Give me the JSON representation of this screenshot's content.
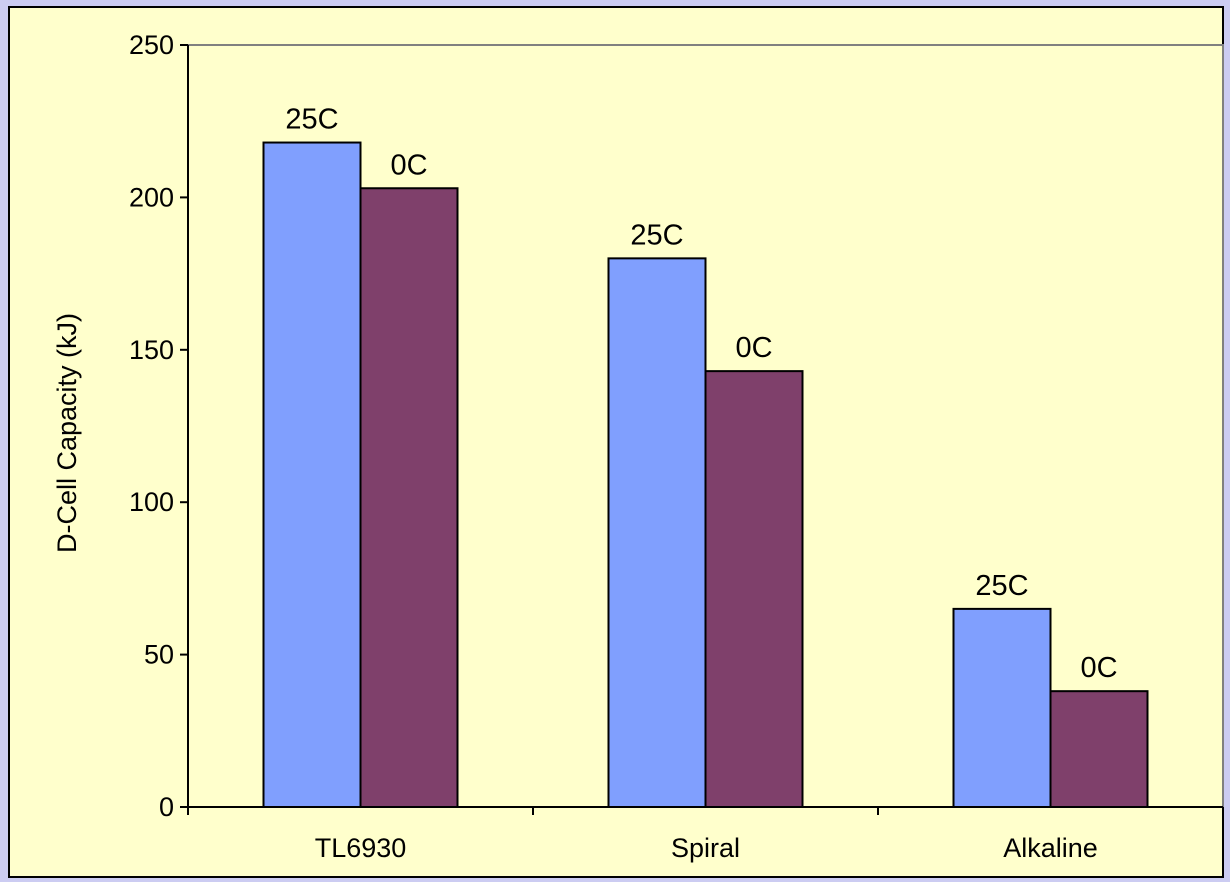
{
  "chart_data": {
    "type": "bar",
    "title": "",
    "xlabel": "",
    "ylabel": "D-Cell Capacity (kJ)",
    "categories": [
      "TL6930",
      "Spiral",
      "Alkaline"
    ],
    "series": [
      {
        "values": [
          218,
          180,
          65
        ],
        "color": "#809ffe",
        "labels": [
          "25C",
          "25C",
          "25C"
        ]
      },
      {
        "values": [
          203,
          143,
          38
        ],
        "color": "#7f406b",
        "labels": [
          "0C",
          "0C",
          "0C"
        ]
      }
    ],
    "ylim": [
      0,
      250
    ],
    "yticks": [
      "0",
      "50",
      "100",
      "150",
      "200",
      "250"
    ],
    "grid": false,
    "legend": "none",
    "colors": {
      "background": "#ffffcc",
      "outer": "#ccccf2",
      "plot_border": "#808080"
    }
  }
}
